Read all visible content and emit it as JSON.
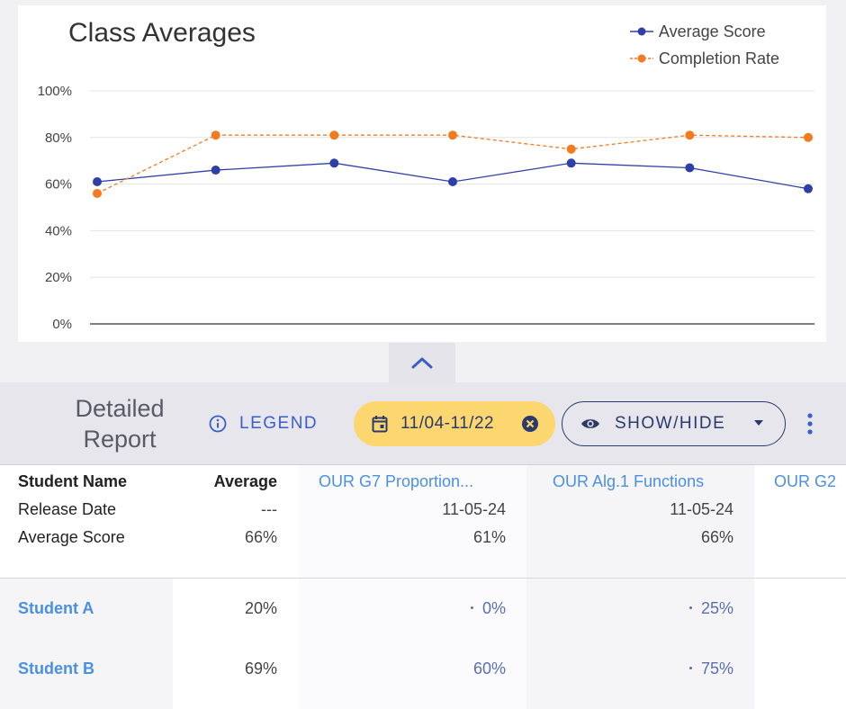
{
  "chart": {
    "title": "Class Averages",
    "legend": [
      {
        "label": "Average Score",
        "color": "#2f3fa8"
      },
      {
        "label": "Completion Rate",
        "color": "#f47a1f"
      }
    ]
  },
  "chart_data": {
    "type": "line",
    "title": "Class Averages",
    "x": [
      1,
      2,
      3,
      4,
      5,
      6,
      7
    ],
    "y_ticks": [
      "100%",
      "80%",
      "60%",
      "40%",
      "20%",
      "0%"
    ],
    "ylim": [
      0,
      100
    ],
    "grid": true,
    "legend_position": "top-right",
    "series": [
      {
        "name": "Average Score",
        "color": "#2f3fa8",
        "style": "solid",
        "values": [
          61,
          66,
          69,
          61,
          69,
          67,
          58
        ]
      },
      {
        "name": "Completion Rate",
        "color": "#f47a1f",
        "style": "dashed",
        "values": [
          56,
          81,
          81,
          81,
          75,
          81,
          80
        ]
      }
    ]
  },
  "toolbar": {
    "report_title": "Detailed Report",
    "legend_label": "LEGEND",
    "date_range": "11/04-11/22",
    "show_hide_label": "SHOW/HIDE"
  },
  "table": {
    "row_labels": {
      "name_header": "Student Name",
      "release_date": "Release Date",
      "average_score": "Average Score"
    },
    "average_col": {
      "header": "Average",
      "release_date": "---",
      "average_score": "66%"
    },
    "assignments": [
      {
        "title": "OUR G7 Proportion...",
        "release_date": "11-05-24",
        "average_score": "61%"
      },
      {
        "title": "OUR Alg.1 Functions",
        "release_date": "11-05-24",
        "average_score": "66%"
      },
      {
        "title": "OUR G2",
        "release_date": "",
        "average_score": ""
      }
    ],
    "students": [
      {
        "name": "Student A",
        "average": "20%",
        "scores": [
          "0%",
          "25%"
        ]
      },
      {
        "name": "Student B",
        "average": "69%",
        "scores": [
          "60%",
          "75%"
        ]
      }
    ]
  }
}
